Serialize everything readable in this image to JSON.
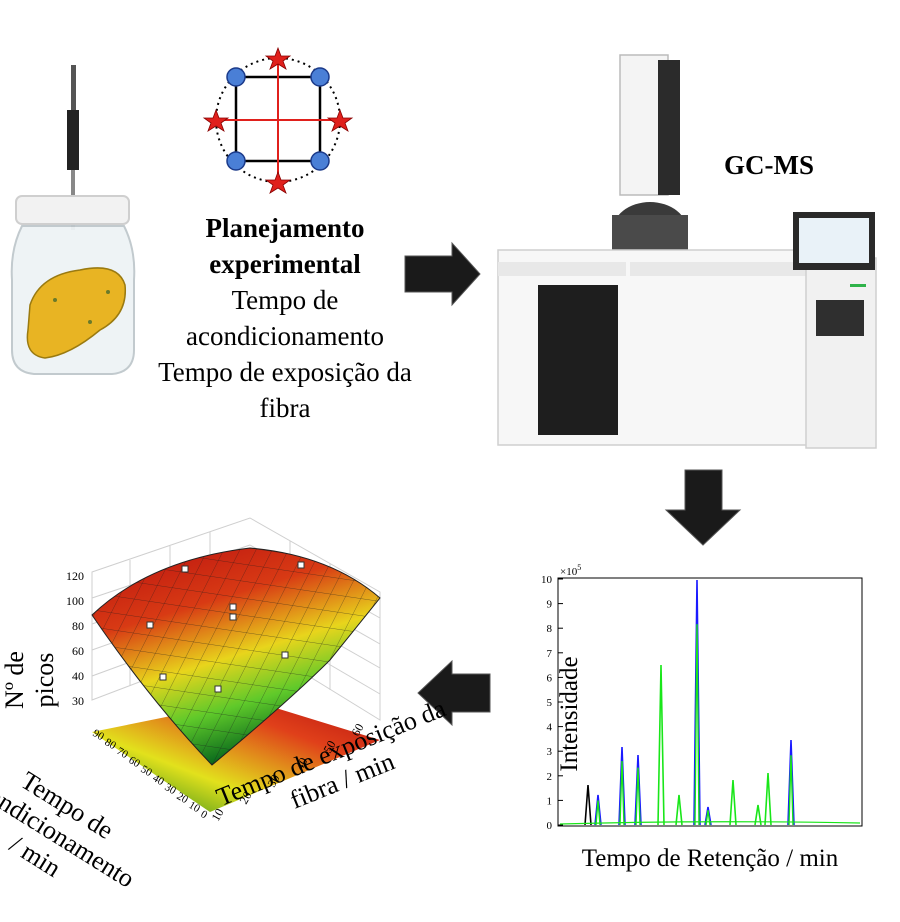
{
  "design": {
    "title": "Planejamento experimental",
    "line1": "Tempo de",
    "line2": "acondicionamento",
    "line3": "Tempo de exposição da",
    "line4": "fibra"
  },
  "instrument": {
    "label": "GC-MS"
  },
  "chromatogram": {
    "ylabel": "Intensidade",
    "xlabel": "Tempo de Retenção / min",
    "exponent": "×10",
    "exponent_power": "5",
    "yticks": [
      "0",
      "1",
      "2",
      "3",
      "4",
      "5",
      "6",
      "7",
      "8",
      "9",
      "10"
    ],
    "colors": {
      "series_a": "#1a1aff",
      "series_b": "#19e619",
      "series_c": "#000000"
    }
  },
  "surface": {
    "zlabel_line1": "Nº de",
    "zlabel_line2": "picos",
    "xlabel_line1": "Tempo de exposição da",
    "xlabel_line2": "fibra / min",
    "ylabel_line1": "Tempo de",
    "ylabel_line2": "acondicionamento",
    "ylabel_line3": "/ min",
    "zticks": [
      "120",
      "100",
      "80",
      "60",
      "40",
      "30"
    ],
    "xticks": [
      "10",
      "20",
      "30",
      "40",
      "50",
      "60"
    ],
    "yticks": [
      "0",
      "10",
      "20",
      "30",
      "40",
      "50",
      "60",
      "70",
      "80",
      "90"
    ]
  },
  "colors": {
    "arrow": "#1a1a1a",
    "design_point": "#4a7fd6",
    "star_point": "#e0201c",
    "fruit": "#e8b423"
  }
}
